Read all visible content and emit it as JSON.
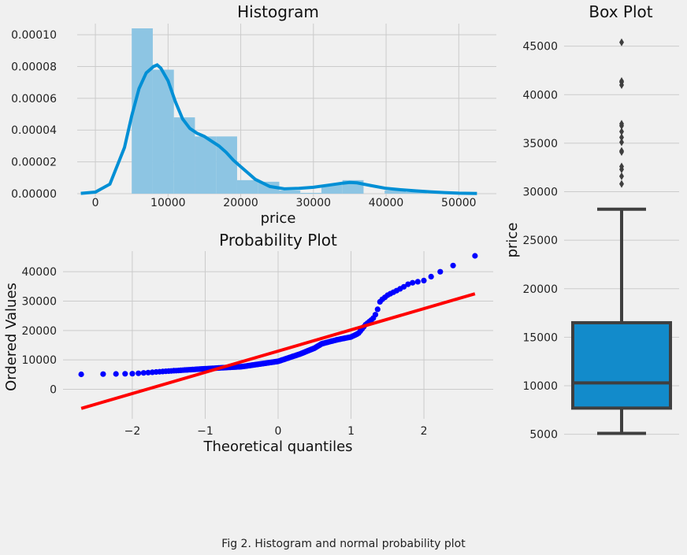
{
  "caption": "Fig 2. Histogram and normal probability plot",
  "colors": {
    "background": "#f0f0f0",
    "grid": "#cbcbcb",
    "hist_bar": "#8dc5e3",
    "kde_line": "#008fd5",
    "prob_points": "#0000ff",
    "prob_line": "#ff0000",
    "box_fill": "#128bcb",
    "box_edge": "#3f3f3f"
  },
  "chart_data": [
    {
      "type": "histogram",
      "title": "Histogram",
      "xlabel": "price",
      "ylabel": "",
      "xlim": [
        -2500,
        53000
      ],
      "ylim": [
        0,
        0.000105
      ],
      "xticks": [
        0,
        10000,
        20000,
        30000,
        40000,
        50000
      ],
      "xtick_labels": [
        "0",
        "10000",
        "20000",
        "30000",
        "40000",
        "50000"
      ],
      "yticks": [
        0,
        2e-05,
        4e-05,
        6e-05,
        8e-05,
        0.0001
      ],
      "ytick_labels": [
        "0.00000",
        "0.00002",
        "0.00004",
        "0.00006",
        "0.00008",
        "0.00010"
      ],
      "grid": true,
      "bins": [
        {
          "x0": 5000,
          "x1": 7900,
          "density": 0.000104
        },
        {
          "x0": 7900,
          "x1": 10800,
          "density": 7.8e-05
        },
        {
          "x0": 10800,
          "x1": 13700,
          "density": 4.8e-05
        },
        {
          "x0": 13700,
          "x1": 16600,
          "density": 3.6e-05
        },
        {
          "x0": 16600,
          "x1": 19500,
          "density": 3.6e-05
        },
        {
          "x0": 19500,
          "x1": 22400,
          "density": 8.5e-06
        },
        {
          "x0": 22400,
          "x1": 25300,
          "density": 7.5e-06
        },
        {
          "x0": 25300,
          "x1": 28200,
          "density": 2e-06
        },
        {
          "x0": 28200,
          "x1": 31100,
          "density": 5e-07
        },
        {
          "x0": 31100,
          "x1": 34000,
          "density": 5.5e-06
        },
        {
          "x0": 34000,
          "x1": 36900,
          "density": 8.5e-06
        },
        {
          "x0": 36900,
          "x1": 39800,
          "density": 0
        },
        {
          "x0": 39800,
          "x1": 42700,
          "density": 2e-06
        },
        {
          "x0": 42700,
          "x1": 45600,
          "density": 1e-06
        }
      ],
      "kde": {
        "x": [
          -2000,
          0,
          2000,
          4000,
          5000,
          6000,
          7000,
          8000,
          8500,
          9000,
          10000,
          11000,
          12000,
          13000,
          14000,
          15000,
          16000,
          17000,
          18000,
          19000,
          20000,
          21000,
          22000,
          24000,
          26000,
          28000,
          30000,
          32000,
          34000,
          35000,
          36000,
          38000,
          40000,
          42000,
          44000,
          46000,
          48000,
          50000,
          52500
        ],
        "y": [
          2e-07,
          1e-06,
          6e-06,
          2.9e-05,
          4.9e-05,
          6.6e-05,
          7.6e-05,
          8e-05,
          8.1e-05,
          7.9e-05,
          7.1e-05,
          5.8e-05,
          4.7e-05,
          4.1e-05,
          3.8e-05,
          3.6e-05,
          3.3e-05,
          3e-05,
          2.6e-05,
          2.1e-05,
          1.7e-05,
          1.3e-05,
          9e-06,
          4.5e-06,
          3e-06,
          3.3e-06,
          4e-06,
          5.3e-06,
          6.6e-06,
          7.1e-06,
          6.8e-06,
          5e-06,
          3.3e-06,
          2.5e-06,
          1.8e-06,
          1.2e-06,
          7e-07,
          3e-07,
          1e-07
        ]
      }
    },
    {
      "type": "scatter",
      "title": "Probability Plot",
      "xlabel": "Theoretical quantiles",
      "ylabel": "Ordered Values",
      "xlim": [
        -2.95,
        2.95
      ],
      "ylim": [
        -9500,
        47000
      ],
      "xticks": [
        -2,
        -1,
        0,
        1,
        2
      ],
      "xtick_labels": [
        "−2",
        "−1",
        "0",
        "1",
        "2"
      ],
      "yticks": [
        0,
        10000,
        20000,
        30000,
        40000
      ],
      "ytick_labels": [
        "0",
        "10000",
        "20000",
        "30000",
        "40000"
      ],
      "grid": true,
      "fit_line": {
        "x": [
          -2.7,
          2.7
        ],
        "y": [
          -6500,
          32500
        ]
      },
      "quantile_anchors": [
        [
          -2.7,
          5100
        ],
        [
          -2.0,
          5300
        ],
        [
          -1.5,
          6200
        ],
        [
          -1.0,
          7000
        ],
        [
          -0.5,
          7700
        ],
        [
          0.0,
          9500
        ],
        [
          0.3,
          12000
        ],
        [
          0.5,
          14000
        ],
        [
          0.6,
          15500
        ],
        [
          0.8,
          16800
        ],
        [
          1.0,
          17800
        ],
        [
          1.1,
          19000
        ],
        [
          1.2,
          22000
        ],
        [
          1.3,
          24000
        ],
        [
          1.35,
          26000
        ],
        [
          1.4,
          30000
        ],
        [
          1.5,
          32000
        ],
        [
          1.7,
          34500
        ],
        [
          1.8,
          36000
        ],
        [
          2.0,
          37000
        ],
        [
          2.3,
          41000
        ],
        [
          2.7,
          45400
        ]
      ],
      "n_points": 205
    },
    {
      "type": "box",
      "title": "Box Plot",
      "xlabel": "",
      "ylabel": "price",
      "ylim": [
        4000,
        47000
      ],
      "yticks": [
        5000,
        10000,
        15000,
        20000,
        25000,
        30000,
        35000,
        40000,
        45000
      ],
      "ytick_labels": [
        "5000",
        "10000",
        "15000",
        "20000",
        "25000",
        "30000",
        "35000",
        "40000",
        "45000"
      ],
      "grid": true,
      "whisker_low": 5100,
      "q1": 7700,
      "median": 10300,
      "q3": 16500,
      "whisker_high": 28200,
      "outliers": [
        30800,
        31600,
        32300,
        32600,
        34100,
        34200,
        35100,
        35600,
        36200,
        36800,
        37000,
        41000,
        41300,
        41400,
        45400
      ]
    }
  ]
}
